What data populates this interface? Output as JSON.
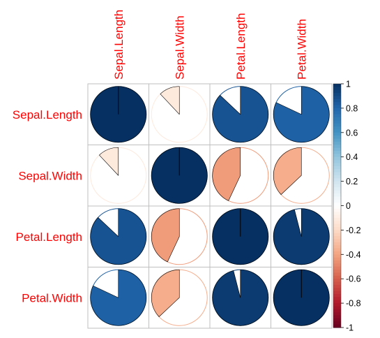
{
  "chart_data": {
    "type": "heatmap",
    "style": "pie",
    "variables": [
      "Sepal.Length",
      "Sepal.Width",
      "Petal.Length",
      "Petal.Width"
    ],
    "matrix": [
      [
        1.0,
        -0.12,
        0.87,
        0.82
      ],
      [
        -0.12,
        1.0,
        -0.43,
        -0.37
      ],
      [
        0.87,
        -0.43,
        1.0,
        0.96
      ],
      [
        0.82,
        -0.37,
        0.96,
        1.0
      ]
    ],
    "label_color": "#ff0000",
    "colorbar": {
      "range": [
        -1,
        1
      ],
      "ticks": [
        "-1",
        "-0.8",
        "-0.6",
        "-0.4",
        "-0.2",
        "0",
        "0.2",
        "0.4",
        "0.6",
        "0.8",
        "1"
      ],
      "colors": [
        "#67001F",
        "#B2182B",
        "#D6604D",
        "#F4A582",
        "#FDDBC7",
        "#FFFFFF",
        "#D1E5F0",
        "#92C5DE",
        "#4393C3",
        "#2166AC",
        "#053061"
      ]
    },
    "grid": true
  }
}
